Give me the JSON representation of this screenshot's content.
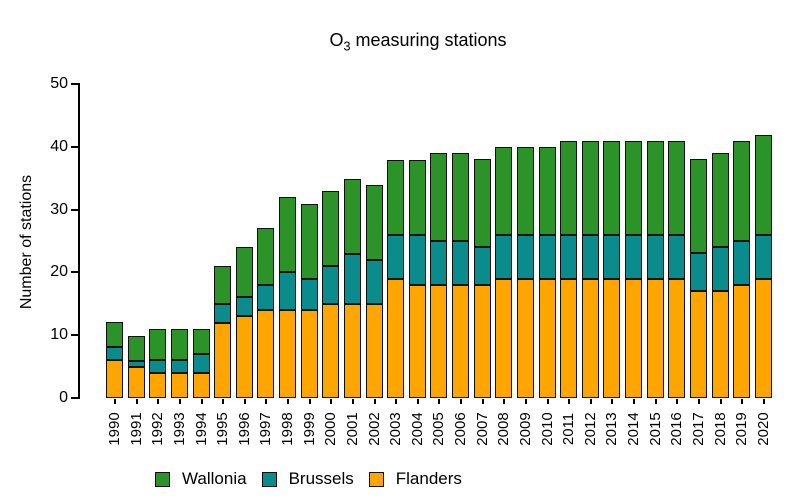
{
  "title": {
    "prefix": "O",
    "subscript": "3",
    "suffix": " measuring stations"
  },
  "ylabel": "Number of stations",
  "chart_data": {
    "type": "bar",
    "stacked": true,
    "title": "O3 measuring stations",
    "xlabel": "",
    "ylabel": "Number of stations",
    "ylim": [
      0,
      50
    ],
    "y_ticks": [
      0,
      10,
      20,
      30,
      40,
      50
    ],
    "grid": false,
    "legend_position": "bottom",
    "legend_order": [
      "Wallonia",
      "Brussels",
      "Flanders"
    ],
    "categories": [
      "1990",
      "1991",
      "1992",
      "1993",
      "1994",
      "1995",
      "1996",
      "1997",
      "1998",
      "1999",
      "2000",
      "2001",
      "2002",
      "2003",
      "2004",
      "2005",
      "2006",
      "2007",
      "2008",
      "2009",
      "2010",
      "2011",
      "2012",
      "2013",
      "2014",
      "2015",
      "2016",
      "2017",
      "2018",
      "2019",
      "2020"
    ],
    "series": [
      {
        "name": "Flanders",
        "color": "#FFA500",
        "values": [
          6,
          5,
          4,
          4,
          4,
          12,
          13,
          14,
          14,
          14,
          15,
          15,
          15,
          19,
          18,
          18,
          18,
          18,
          19,
          19,
          19,
          19,
          19,
          19,
          19,
          19,
          19,
          17,
          17,
          18,
          19
        ]
      },
      {
        "name": "Brussels",
        "color": "#0B8C8C",
        "values": [
          2,
          1,
          2,
          2,
          3,
          3,
          3,
          4,
          6,
          5,
          6,
          8,
          7,
          7,
          8,
          7,
          7,
          6,
          7,
          7,
          7,
          7,
          7,
          7,
          7,
          7,
          7,
          6,
          7,
          7,
          7
        ]
      },
      {
        "name": "Wallonia",
        "color": "#2B9327",
        "values": [
          4,
          4,
          5,
          5,
          4,
          6,
          8,
          9,
          12,
          12,
          12,
          12,
          12,
          12,
          12,
          14,
          14,
          14,
          14,
          14,
          14,
          15,
          15,
          15,
          15,
          15,
          15,
          15,
          15,
          16,
          16
        ]
      }
    ],
    "totals": [
      12,
      10,
      11,
      11,
      11,
      21,
      24,
      27,
      32,
      31,
      33,
      35,
      34,
      38,
      38,
      39,
      39,
      38,
      40,
      40,
      40,
      41,
      41,
      41,
      41,
      41,
      41,
      38,
      39,
      41,
      42
    ]
  },
  "axis_color": "#000000",
  "bar_border_color": "#111111"
}
